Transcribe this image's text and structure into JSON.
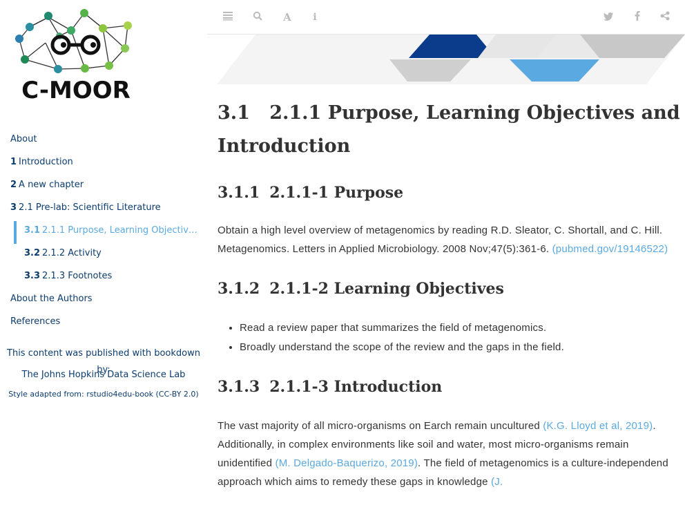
{
  "logo": {
    "text": "C-MOOR"
  },
  "toc": {
    "items": [
      {
        "num": "",
        "label": "About",
        "level": 0,
        "active": false
      },
      {
        "num": "1",
        "label": "Introduction",
        "level": 0,
        "active": false
      },
      {
        "num": "2",
        "label": "A new chapter",
        "level": 0,
        "active": false
      },
      {
        "num": "3",
        "label": "2.1 Pre-lab: Scientific Literature",
        "level": 0,
        "active": false
      },
      {
        "num": "3.1",
        "label": "2.1.1 Purpose, Learning Objectives ...",
        "level": 1,
        "active": true
      },
      {
        "num": "3.2",
        "label": "2.1.2 Activity",
        "level": 1,
        "active": false
      },
      {
        "num": "3.3",
        "label": "2.1.3 Footnotes",
        "level": 1,
        "active": false
      },
      {
        "num": "",
        "label": "About the Authors",
        "level": 0,
        "active": false
      },
      {
        "num": "",
        "label": "References",
        "level": 0,
        "active": false
      }
    ]
  },
  "credits": {
    "line1": "This content was published with bookdown by:",
    "line2": "The Johns Hopkins Data Science Lab",
    "line3": "Style adapted from: rstudio4edu-book (CC-BY 2.0)"
  },
  "toolbar": {
    "left_icons": [
      "menu-icon",
      "search-icon",
      "font-icon",
      "info-icon"
    ],
    "right_icons": [
      "twitter-icon",
      "facebook-icon",
      "share-icon"
    ]
  },
  "content": {
    "title_num": "3.1",
    "title_text": "2.1.1 Purpose, Learning Objectives and Introduction",
    "s1": {
      "num": "3.1.1",
      "text": "2.1.1-1 Purpose"
    },
    "s1_body": "Obtain a high level overview of metagenomics by reading R.D. Sleator, C. Shortall, and C. Hill. Metagenomics. Letters in Applied Microbiology. 2008 Nov;47(5):361-6. ",
    "s1_link": "(pubmed.gov/19146522)",
    "s2": {
      "num": "3.1.2",
      "text": "2.1.1-2 Learning Objectives"
    },
    "s2_bullets": [
      "Read a review paper that summarizes the field of metagenomics.",
      "Broadly understand the scope of the review and the gaps in the field."
    ],
    "s3": {
      "num": "3.1.3",
      "text": "2.1.1-3 Introduction"
    },
    "s3_body_a": "The vast majority of all micro-organisms on Earch remain uncultured ",
    "s3_link1": "(K.G. Lloyd et al, 2019)",
    "s3_body_b": ". Additionally, in complex environments like soil and water, most micro-organisms remain unidentified ",
    "s3_link2": "(M. Delgado-Baquerizo, 2019)",
    "s3_body_c": ". The field of metagenomics is a culture-independend approach which aims to remedy these gaps in knowledge ",
    "s3_link3": "(J."
  },
  "colors": {
    "link": "#5aa9e0",
    "nav": "#0b3c6e",
    "banner_dark": "#0b3c8c",
    "banner_light": "#5aa9e0"
  }
}
